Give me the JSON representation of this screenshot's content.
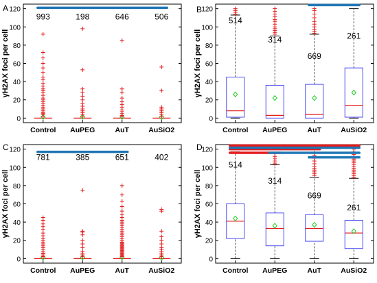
{
  "chart_data": [
    {
      "panel": "A",
      "type": "box",
      "ylabel": "γH2AX foci per cell",
      "ylim": [
        -5,
        125
      ],
      "yticks": [
        0,
        20,
        40,
        60,
        80,
        100,
        120
      ],
      "categories": [
        "Control",
        "AuPEG",
        "AuT",
        "AuSiO2"
      ],
      "counts": [
        "993",
        "198",
        "646",
        "506"
      ],
      "boxes": [
        {
          "median": 0,
          "q1": 0,
          "q3": 0,
          "whisker_low": 0,
          "whisker_high": 0,
          "mean": 1.2,
          "outliers": [
            2,
            4,
            5,
            6,
            8,
            10,
            12,
            14,
            16,
            18,
            20,
            22,
            25,
            28,
            30,
            32,
            35,
            38,
            42,
            45,
            50,
            55,
            60,
            66,
            72,
            92
          ]
        },
        {
          "median": 0,
          "q1": 0,
          "q3": 0,
          "whisker_low": 0,
          "whisker_high": 0,
          "mean": 1.4,
          "outliers": [
            2,
            4,
            6,
            8,
            10,
            13,
            16,
            20,
            24,
            28,
            32,
            53,
            98
          ]
        },
        {
          "median": 0,
          "q1": 0,
          "q3": 0,
          "whisker_low": 0,
          "whisker_high": 0,
          "mean": 1.1,
          "outliers": [
            2,
            3,
            5,
            7,
            9,
            12,
            15,
            18,
            22,
            28,
            32,
            85
          ]
        },
        {
          "median": 0,
          "q1": 0,
          "q3": 0,
          "whisker_low": 0,
          "whisker_high": 0,
          "mean": 0.9,
          "outliers": [
            2,
            4,
            6,
            8,
            10,
            12,
            30,
            56
          ]
        }
      ],
      "significance": [
        {
          "from": "Control",
          "to": "AuSiO2",
          "y": 121,
          "color": "#1f77b4"
        }
      ]
    },
    {
      "panel": "B",
      "type": "box",
      "ylabel": "γH2AX foci per cell",
      "ylim": [
        -5,
        125
      ],
      "yticks": [
        0,
        20,
        40,
        60,
        80,
        100,
        120
      ],
      "categories": [
        "Control",
        "AuPEG",
        "AuT",
        "AuSiO2"
      ],
      "counts": [
        "514",
        "314",
        "669",
        "261"
      ],
      "count_y": [
        104,
        83,
        65,
        87
      ],
      "boxes": [
        {
          "median": 8,
          "q1": 1,
          "q3": 45,
          "whisker_low": 0,
          "whisker_high": 113,
          "mean": 26,
          "outliers": [
            114,
            116,
            118,
            120
          ]
        },
        {
          "median": 3,
          "q1": 0,
          "q3": 36,
          "whisker_low": 0,
          "whisker_high": 90,
          "mean": 22,
          "outliers": [
            92,
            94,
            96,
            98,
            100,
            103,
            106,
            108,
            111,
            114,
            117,
            120
          ]
        },
        {
          "median": 4,
          "q1": 0,
          "q3": 37,
          "whisker_low": 0,
          "whisker_high": 92,
          "mean": 22,
          "outliers": [
            93,
            95,
            97,
            100,
            103,
            106,
            110,
            114,
            118,
            120
          ]
        },
        {
          "median": 14,
          "q1": 1,
          "q3": 55,
          "whisker_low": 0,
          "whisker_high": 120,
          "mean": 28,
          "outliers": []
        }
      ],
      "significance": [
        {
          "from": "AuT",
          "to": "AuSiO2",
          "y": 124,
          "color": "#1f77b4"
        }
      ]
    },
    {
      "panel": "C",
      "type": "box",
      "ylabel": "γH2AX foci per cell",
      "ylim": [
        -5,
        125
      ],
      "yticks": [
        0,
        20,
        40,
        60,
        80,
        100,
        120
      ],
      "categories": [
        "Control",
        "AuPEG",
        "AuT",
        "AuSiO2"
      ],
      "counts": [
        "781",
        "385",
        "651",
        "402"
      ],
      "boxes": [
        {
          "median": 0,
          "q1": 0,
          "q3": 0,
          "whisker_low": 0,
          "whisker_high": 0,
          "mean": 1.0,
          "outliers": [
            2,
            3,
            5,
            6,
            8,
            10,
            12,
            14,
            16,
            18,
            20,
            22,
            25,
            28,
            32,
            35,
            38,
            42,
            45
          ]
        },
        {
          "median": 0,
          "q1": 0,
          "q3": 0,
          "whisker_low": 0,
          "whisker_high": 0,
          "mean": 1.2,
          "outliers": [
            2,
            4,
            6,
            8,
            12,
            16,
            20,
            26,
            29,
            30,
            75
          ]
        },
        {
          "median": 0,
          "q1": 0,
          "q3": 0,
          "whisker_low": 0,
          "whisker_high": 0,
          "mean": 1.3,
          "outliers": [
            2,
            3,
            4,
            5,
            6,
            7,
            8,
            9,
            10,
            11,
            12,
            13,
            14,
            15,
            16,
            17,
            18,
            20,
            22,
            24,
            26,
            28,
            30,
            32,
            34,
            36,
            38,
            40,
            42,
            45,
            48,
            52,
            57,
            63,
            70,
            80
          ]
        },
        {
          "median": 0,
          "q1": 0,
          "q3": 0,
          "whisker_low": 0,
          "whisker_high": 0,
          "mean": 1.0,
          "outliers": [
            2,
            4,
            6,
            8,
            10,
            12,
            16,
            20,
            24,
            30,
            52,
            54
          ]
        }
      ],
      "significance": [
        {
          "from": "Control",
          "to": "AuT",
          "y": 117,
          "color": "#1f77b4"
        }
      ]
    },
    {
      "panel": "D",
      "type": "box",
      "ylabel": "γH2AX foci per cell",
      "ylim": [
        -5,
        125
      ],
      "yticks": [
        0,
        20,
        40,
        60,
        80,
        100,
        120
      ],
      "categories": [
        "Control",
        "AuPEG",
        "AuT",
        "AuSiO2"
      ],
      "counts": [
        "514",
        "314",
        "669",
        "261"
      ],
      "count_y": [
        100,
        82,
        66,
        53
      ],
      "boxes": [
        {
          "median": 41,
          "q1": 22,
          "q3": 60,
          "whisker_low": 0,
          "whisker_high": 117,
          "mean": 44,
          "outliers": []
        },
        {
          "median": 33,
          "q1": 14,
          "q3": 50,
          "whisker_low": 0,
          "whisker_high": 103,
          "mean": 36,
          "outliers": [
            104,
            106,
            108,
            110,
            112,
            115
          ]
        },
        {
          "median": 33,
          "q1": 19,
          "q3": 48,
          "whisker_low": 0,
          "whisker_high": 89,
          "mean": 37,
          "outliers": [
            91,
            93,
            95,
            97,
            99,
            101,
            104,
            107,
            110,
            113,
            116
          ]
        },
        {
          "median": 28,
          "q1": 11,
          "q3": 42,
          "whisker_low": 0,
          "whisker_high": 88,
          "mean": 30,
          "outliers": [
            89,
            91,
            93,
            95,
            97,
            99,
            101,
            103,
            105,
            107,
            109,
            111,
            114,
            117,
            120
          ]
        }
      ],
      "significance": [
        {
          "from": "Control",
          "to": "AuSiO2",
          "y": 124,
          "color": "#e41a1c"
        },
        {
          "from": "Control",
          "to": "AuT",
          "y": 120,
          "color": "#e41a1c"
        },
        {
          "from": "Control",
          "to": "AuPEG",
          "y": 116,
          "color": "#e41a1c"
        },
        {
          "from": "Control",
          "to": "AuSiO2",
          "y": 121.5,
          "color": "#1f77b4"
        },
        {
          "from": "AuPEG",
          "to": "AuSiO2",
          "y": 116,
          "color": "#1f77b4"
        },
        {
          "from": "AuT",
          "to": "AuSiO2",
          "y": 111,
          "color": "#1f77b4"
        }
      ]
    }
  ],
  "style": {
    "box_color": "#4a4af0",
    "median_color": "#e41a1c",
    "outlier_color": "#e41a1c",
    "mean_color": "#22cc22",
    "whisker_color": "#555555"
  }
}
